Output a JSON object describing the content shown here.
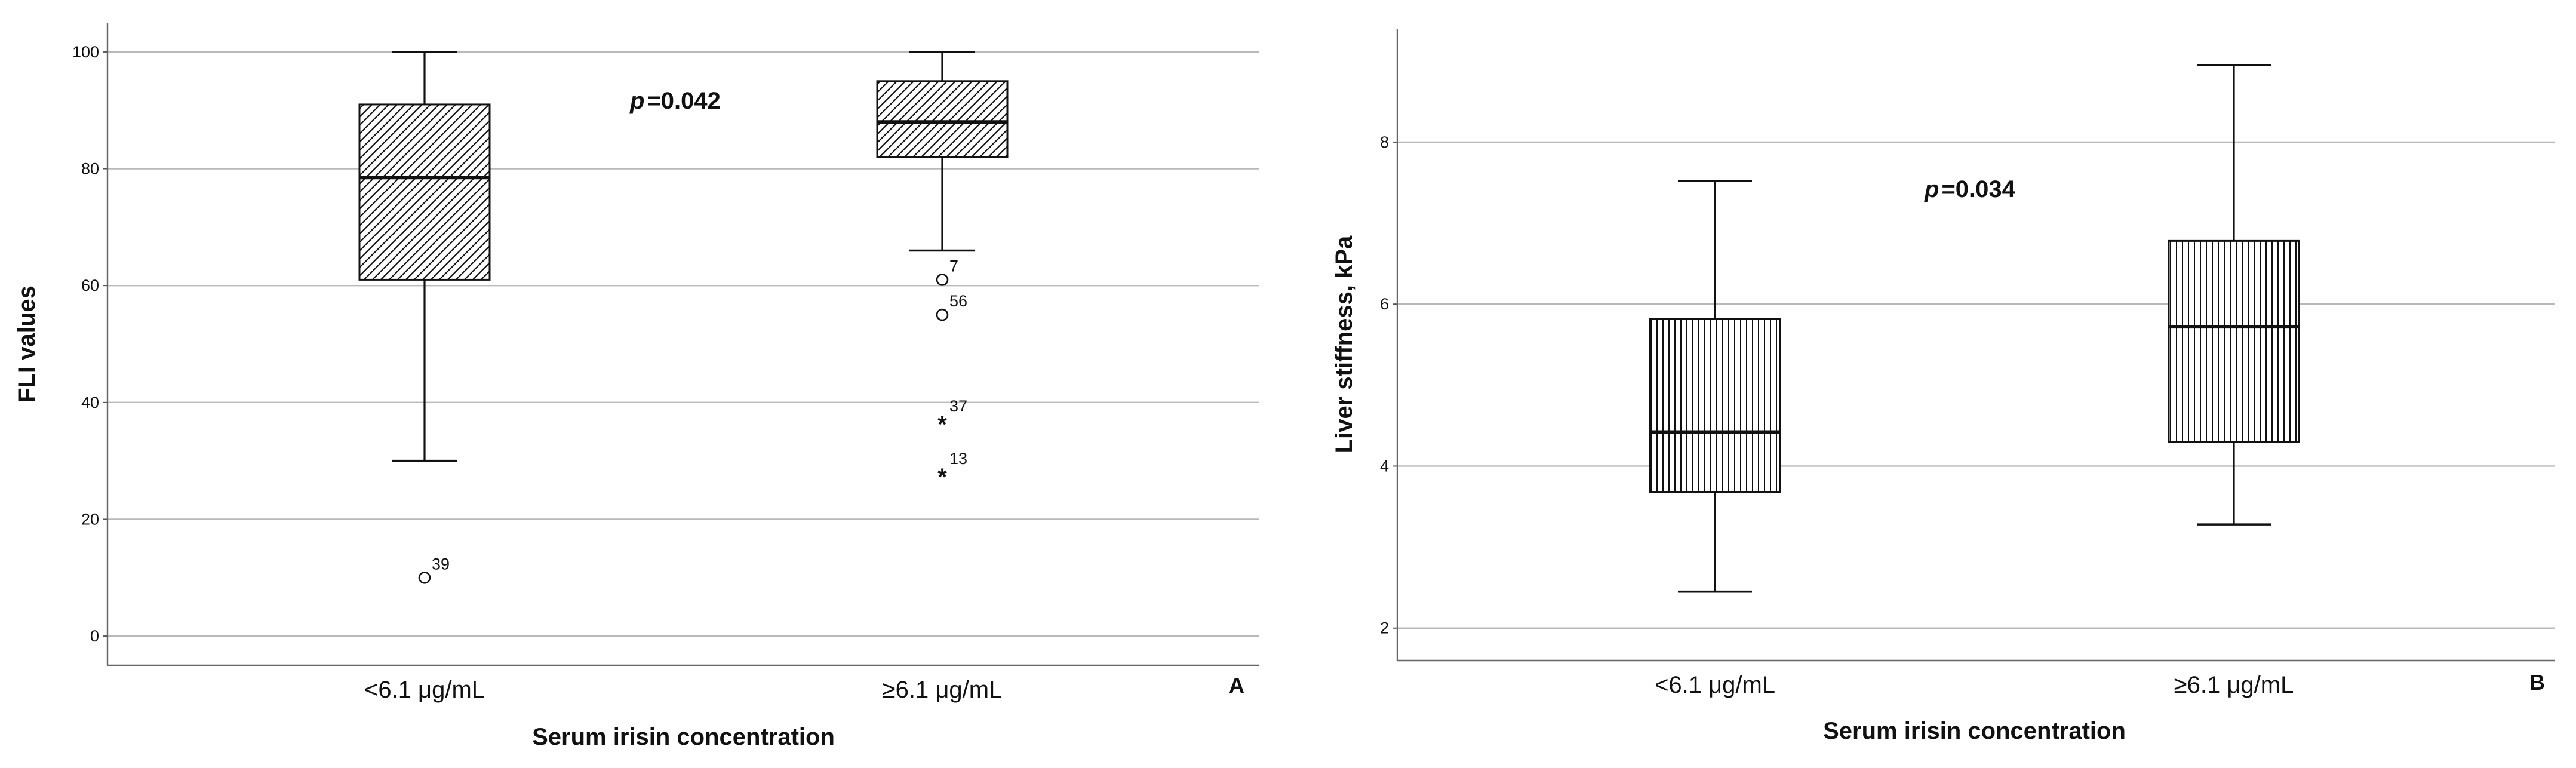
{
  "chart_data": [
    {
      "type": "box",
      "panel_label": "A",
      "xlabel": "Serum irisin concentration",
      "ylabel": "FLI values",
      "ylim": [
        -5,
        105
      ],
      "yticks": [
        "0",
        "20",
        "40",
        "60",
        "80",
        "100"
      ],
      "grid": true,
      "annotation": {
        "prefix": "p",
        "value": "=0.042"
      },
      "categories": [
        "<6.1 μg/mL",
        "≥6.1 μg/mL"
      ],
      "boxes": [
        {
          "category": "<6.1 μg/mL",
          "whisker_low": 30,
          "q1": 61,
          "median": 78.5,
          "q3": 91,
          "whisker_high": 100,
          "fill": "diagonal-hatch"
        },
        {
          "category": "≥6.1 μg/mL",
          "whisker_low": 66,
          "q1": 82,
          "median": 88,
          "q3": 95,
          "whisker_high": 100,
          "fill": "diagonal-hatch"
        }
      ],
      "outliers": [
        {
          "category": "<6.1 μg/mL",
          "value": 10,
          "label": "39",
          "marker": "circle"
        },
        {
          "category": "≥6.1 μg/mL",
          "value": 61,
          "label": "7",
          "marker": "circle"
        },
        {
          "category": "≥6.1 μg/mL",
          "value": 55,
          "label": "56",
          "marker": "circle"
        },
        {
          "category": "≥6.1 μg/mL",
          "value": 37,
          "label": "37",
          "marker": "star"
        },
        {
          "category": "≥6.1 μg/mL",
          "value": 28,
          "label": "13",
          "marker": "star"
        }
      ]
    },
    {
      "type": "box",
      "panel_label": "B",
      "xlabel": "Serum irisin concentration",
      "ylabel": "Liver stiffness, kPa",
      "ylim": [
        1.6,
        9.4
      ],
      "yticks": [
        "2",
        "4",
        "6",
        "8"
      ],
      "grid": true,
      "annotation": {
        "prefix": "p",
        "value": "=0.034"
      },
      "categories": [
        "<6.1 μg/mL",
        "≥6.1 μg/mL"
      ],
      "boxes": [
        {
          "category": "<6.1 μg/mL",
          "whisker_low": 2.45,
          "q1": 3.68,
          "median": 4.42,
          "q3": 5.82,
          "whisker_high": 7.52,
          "fill": "vertical-hatch"
        },
        {
          "category": "≥6.1 μg/mL",
          "whisker_low": 3.28,
          "q1": 4.3,
          "median": 5.72,
          "q3": 6.78,
          "whisker_high": 8.95,
          "fill": "vertical-hatch"
        }
      ],
      "outliers": []
    }
  ]
}
